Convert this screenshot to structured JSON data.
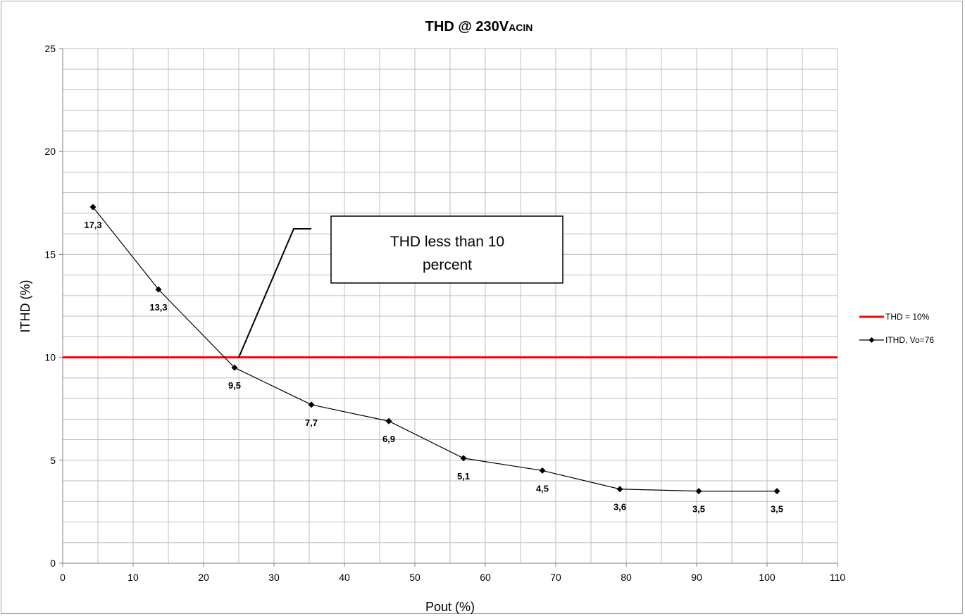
{
  "chart_data": {
    "type": "line",
    "title": "THD @ 230V",
    "title_subscript": "ACIN",
    "xlabel": "Pout (%)",
    "ylabel": "ITHD (%)",
    "xlim": [
      0,
      110
    ],
    "ylim": [
      0,
      25
    ],
    "x_ticks": [
      0,
      10,
      20,
      30,
      40,
      50,
      60,
      70,
      80,
      90,
      100,
      110
    ],
    "y_ticks": [
      0,
      5,
      10,
      15,
      20,
      25
    ],
    "x_minor_step": 5,
    "y_minor_step": 1,
    "grid": true,
    "legend_position": "right",
    "series": [
      {
        "name": "THD = 10%",
        "kind": "reference-line",
        "color": "#ff0000",
        "y": 10
      },
      {
        "name": "ITHD, Vo=76",
        "kind": "line-marker",
        "color": "#000000",
        "marker": "diamond",
        "x": [
          4.3,
          13.6,
          24.4,
          35.3,
          46.3,
          56.9,
          68.1,
          79.1,
          90.3,
          101.4
        ],
        "y": [
          17.3,
          13.3,
          9.5,
          7.7,
          6.9,
          5.1,
          4.5,
          3.6,
          3.5,
          3.5
        ],
        "labels": [
          "17,3",
          "13,3",
          "9,5",
          "7,7",
          "6,9",
          "5,1",
          "4,5",
          "3,6",
          "3,5",
          "3,5"
        ]
      }
    ],
    "annotation": {
      "lines": [
        "THD less than 10",
        "percent"
      ],
      "points_to": {
        "x": 25,
        "y": 10
      }
    }
  }
}
